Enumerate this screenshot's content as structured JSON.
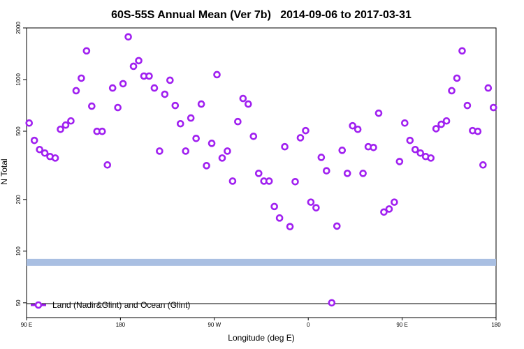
{
  "chart_data": {
    "type": "scatter",
    "title": "60S-55S Annual Mean (Ver 7b)   2014-09-06 to 2017-03-31",
    "x_label": "Longitude (deg E)",
    "y_label": "N Total",
    "log_y": true,
    "legend": "bottom-left",
    "xlim": [
      90,
      540
    ],
    "xticks": [
      {
        "value": 90,
        "label": "90 E"
      },
      180,
      {
        "value": 270,
        "label": "90 W"
      },
      {
        "value": 360,
        "label": "0"
      },
      {
        "value": 450,
        "label": "90 E"
      },
      {
        "value": 540,
        "label": "180"
      }
    ],
    "ylim": [
      41,
      2000
    ],
    "yticks": [
      50,
      100,
      200,
      500,
      1000,
      2000
    ],
    "reference_line": {
      "value": 86,
      "color": "#a9bfe2"
    },
    "series": [
      {
        "name": "Land (Nadir&Glint) and Ocean (Glint)",
        "color": "#a020f0",
        "x": [
          92.5,
          97.5,
          102.5,
          107.5,
          112.5,
          117.5,
          122.5,
          127.5,
          132.5,
          137.5,
          142.5,
          147.5,
          152.5,
          157.5,
          162.5,
          167.5,
          172.5,
          177.5,
          182.5,
          187.5,
          192.5,
          197.5,
          202.5,
          207.5,
          212.5,
          217.5,
          222.5,
          227.5,
          232.5,
          237.5,
          242.5,
          247.5,
          252.5,
          257.5,
          262.5,
          267.5,
          272.5,
          277.5,
          282.5,
          287.5,
          292.5,
          297.5,
          302.5,
          307.5,
          312.5,
          317.5,
          322.5,
          327.5,
          332.5,
          337.5,
          342.5,
          347.5,
          352.5,
          357.5,
          362.5,
          367.5,
          372.5,
          377.5,
          382.5,
          387.5,
          392.5,
          397.5,
          402.5,
          407.5,
          412.5,
          417.5,
          422.5,
          427.5,
          432.5,
          437.5,
          442.5,
          447.5,
          452.5,
          457.5,
          462.5,
          467.5,
          472.5,
          477.5,
          482.5,
          487.5,
          492.5,
          497.5,
          502.5,
          507.5,
          512.5,
          517.5,
          522.5,
          527.5,
          532.5,
          537.5
        ],
        "values": [
          558,
          442,
          391,
          373,
          356,
          349,
          513,
          543,
          574,
          861,
          1019,
          1470,
          700,
          499,
          499,
          318,
          893,
          687,
          946,
          1774,
          1195,
          1289,
          1048,
          1048,
          893,
          383,
          821,
          991,
          706,
          553,
          383,
          597,
          454,
          720,
          315,
          425,
          1068,
          349,
          383,
          256,
          569,
          776,
          720,
          467,
          284,
          256,
          256,
          182,
          156,
          406,
          139,
          254,
          458,
          504,
          193,
          179,
          352,
          294,
          50,
          140,
          387,
          284,
          538,
          513,
          284,
          406,
          402,
          637,
          169,
          176,
          193,
          333,
          558,
          442,
          391,
          373,
          356,
          349,
          517,
          549,
          574,
          861,
          1019,
          1470,
          706,
          504,
          499,
          318,
          893,
          687
        ]
      }
    ]
  }
}
